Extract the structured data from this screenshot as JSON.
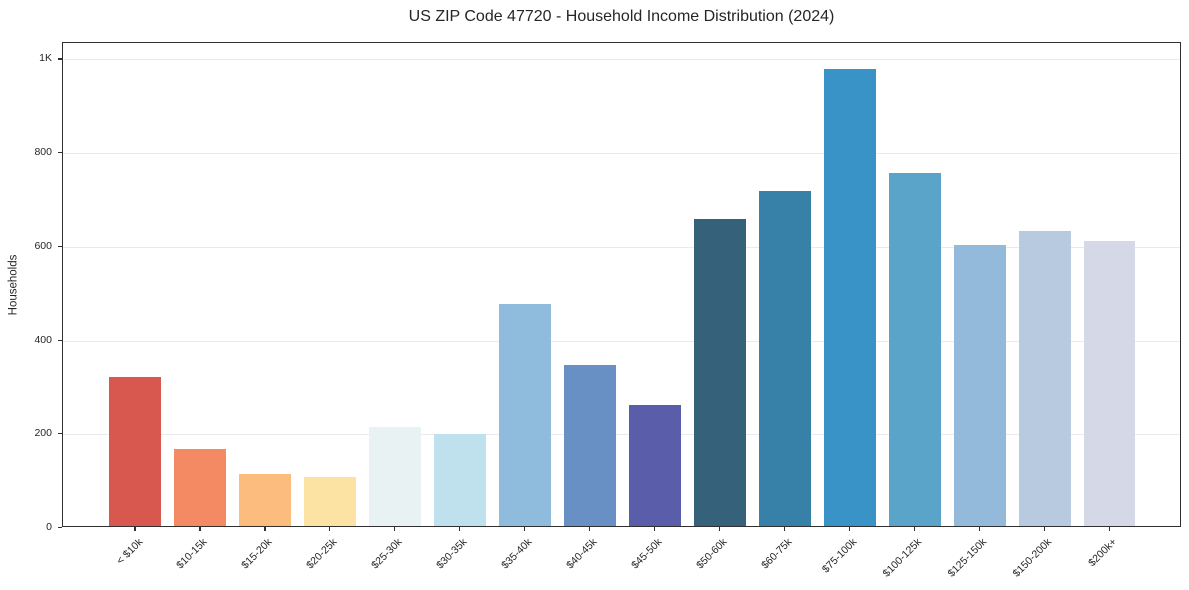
{
  "chart_data": {
    "type": "bar",
    "title": "US ZIP Code 47720 - Household Income Distribution (2024)",
    "xlabel": "",
    "ylabel": "Households",
    "categories": [
      "< $10k",
      "$10-15k",
      "$15-20k",
      "$20-25k",
      "$25-30k",
      "$30-35k",
      "$35-40k",
      "$40-45k",
      "$45-50k",
      "$50-60k",
      "$60-75k",
      "$75-100k",
      "$100-125k",
      "$125-150k",
      "$150-200k",
      "$200k+"
    ],
    "values": [
      318,
      165,
      111,
      105,
      211,
      196,
      473,
      343,
      258,
      655,
      715,
      975,
      753,
      600,
      630,
      608
    ],
    "bar_colors": [
      "#d8574f",
      "#f48a63",
      "#fbbc7d",
      "#fde3a3",
      "#e8f2f3",
      "#bfe1ee",
      "#8fbcdc",
      "#6890c4",
      "#5a5daa",
      "#35617b",
      "#3780a8",
      "#3993c6",
      "#5ba4c9",
      "#93badb",
      "#b8cadf",
      "#d5d8e6"
    ],
    "ylim": [
      0,
      1035
    ],
    "yticks": [
      {
        "value": 0,
        "label": "0"
      },
      {
        "value": 200,
        "label": "200"
      },
      {
        "value": 400,
        "label": "400"
      },
      {
        "value": 600,
        "label": "600"
      },
      {
        "value": 800,
        "label": "800"
      },
      {
        "value": 1000,
        "label": "1K"
      }
    ],
    "grid": "horizontal",
    "legend": "none"
  },
  "colors": {
    "background": "#ffffff",
    "gridline": "#e9e9ef",
    "axis_spine": "#303030",
    "text": "#262626"
  }
}
